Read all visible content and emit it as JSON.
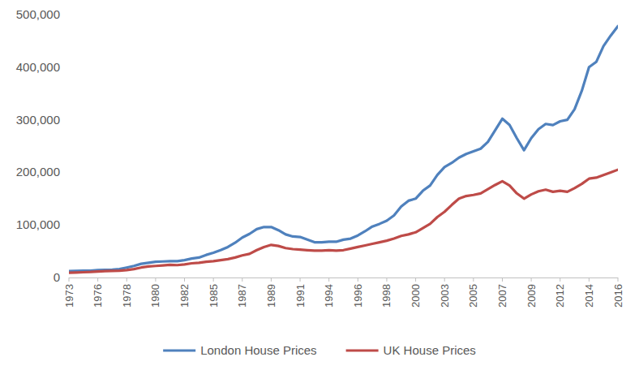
{
  "chart_data": {
    "type": "line",
    "categories": [
      "1973",
      null,
      null,
      null,
      "1976",
      null,
      null,
      null,
      "1978",
      null,
      null,
      null,
      "1980",
      null,
      null,
      null,
      "1982",
      null,
      null,
      null,
      "1985",
      null,
      null,
      null,
      "1987",
      null,
      null,
      null,
      "1989",
      null,
      null,
      null,
      "1991",
      null,
      null,
      null,
      "1994",
      null,
      null,
      null,
      "1996",
      null,
      null,
      null,
      "1998",
      null,
      null,
      null,
      "2000",
      null,
      null,
      null,
      "2003",
      null,
      null,
      null,
      "2005",
      null,
      null,
      null,
      "2007",
      null,
      null,
      null,
      "2009",
      null,
      null,
      null,
      "2012",
      null,
      null,
      null,
      "2014",
      null,
      null,
      null,
      "2016"
    ],
    "series": [
      {
        "name": "London House Prices",
        "color": "#4f81bd",
        "values": [
          12000,
          12500,
          13000,
          13000,
          14000,
          14500,
          15000,
          16000,
          19000,
          22000,
          26000,
          28000,
          30000,
          30500,
          31000,
          31000,
          33000,
          36000,
          38000,
          43000,
          47000,
          52000,
          58000,
          66000,
          76000,
          83000,
          92000,
          96000,
          96000,
          90000,
          82000,
          78000,
          77000,
          72000,
          67000,
          67000,
          68000,
          68000,
          72000,
          74000,
          80000,
          88000,
          97000,
          102000,
          108000,
          118000,
          135000,
          146000,
          150000,
          165000,
          175000,
          195000,
          210000,
          218000,
          228000,
          235000,
          240000,
          245000,
          258000,
          280000,
          302000,
          290000,
          265000,
          242000,
          265000,
          282000,
          292000,
          290000,
          297000,
          300000,
          320000,
          355000,
          400000,
          410000,
          440000,
          460000,
          478000
        ]
      },
      {
        "name": "UK House Prices",
        "color": "#be4b48",
        "values": [
          9000,
          9500,
          10000,
          10500,
          11500,
          12000,
          12500,
          13000,
          14000,
          16000,
          19000,
          21000,
          22000,
          23000,
          24000,
          23500,
          25000,
          27000,
          28000,
          30000,
          31000,
          33000,
          35000,
          38000,
          42000,
          45000,
          52000,
          58000,
          62000,
          60000,
          56000,
          54000,
          53000,
          52000,
          51000,
          51000,
          52000,
          51000,
          52000,
          55000,
          58000,
          61000,
          64000,
          67000,
          70000,
          74000,
          79000,
          82000,
          86000,
          94000,
          102000,
          115000,
          125000,
          138000,
          150000,
          155000,
          157000,
          160000,
          168000,
          176000,
          183000,
          175000,
          160000,
          150000,
          158000,
          164000,
          167000,
          163000,
          165000,
          163000,
          170000,
          178000,
          188000,
          190000,
          195000,
          200000,
          205000
        ]
      }
    ],
    "ylim": [
      0,
      500000
    ],
    "yticks": [
      0,
      {
        "value": 100000,
        "label": "100,000"
      },
      {
        "value": 200000,
        "label": "200,000"
      },
      {
        "value": 300000,
        "label": "300,000"
      },
      {
        "value": 400000,
        "label": "400,000"
      },
      {
        "value": 500000,
        "label": "500,000"
      }
    ],
    "grid": false,
    "legend": "bottom"
  }
}
